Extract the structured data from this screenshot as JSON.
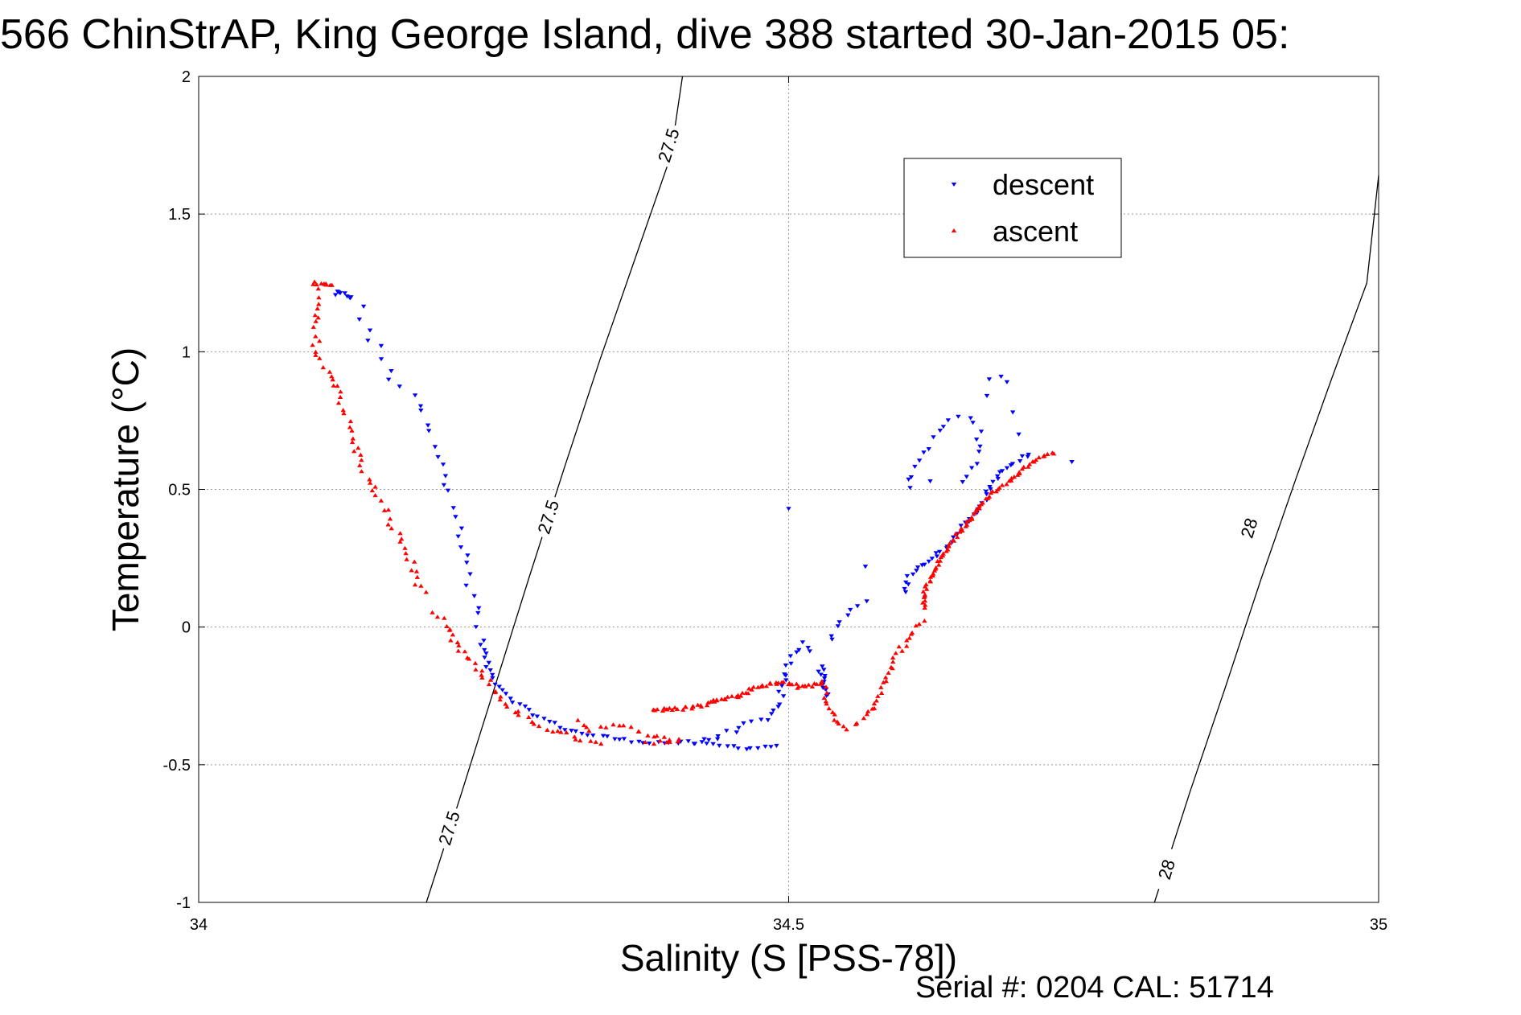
{
  "chart_data": {
    "type": "scatter",
    "title": "566 ChinStrAP, King George Island, dive 388 started 30-Jan-2015 05:",
    "xlabel": "Salinity (S [PSS-78])",
    "ylabel": "Temperature (°C)",
    "xlim": [
      34,
      35
    ],
    "ylim": [
      -1,
      2
    ],
    "xticks": [
      34,
      34.5,
      35
    ],
    "xtick_labels": [
      "34",
      "34.5",
      "35"
    ],
    "yticks": [
      -1,
      -0.5,
      0,
      0.5,
      1,
      1.5,
      2
    ],
    "ytick_labels": [
      "-1",
      "-0.5",
      "0",
      "0.5",
      "1",
      "1.5",
      "2"
    ],
    "grid": true,
    "legend_position": "top-right",
    "colors": {
      "descent": "#0000ff",
      "ascent": "#ff0000"
    },
    "footer": "Serial #: 0204  CAL: 51714",
    "isopycnals": [
      {
        "label": "27.5",
        "points": [
          [
            34.193,
            -1.0
          ],
          [
            34.223,
            -0.6
          ],
          [
            34.25,
            -0.23
          ],
          [
            34.28,
            0.18
          ],
          [
            34.31,
            0.58
          ],
          [
            34.34,
            0.97
          ],
          [
            34.37,
            1.34
          ],
          [
            34.4,
            1.71
          ],
          [
            34.41,
            2.0
          ]
        ],
        "labels_at": [
          [
            34.212,
            -0.73
          ],
          [
            34.296,
            0.4
          ],
          [
            34.398,
            1.75
          ]
        ]
      },
      {
        "label": "28",
        "points": [
          [
            34.81,
            -1.0
          ],
          [
            34.84,
            -0.6
          ],
          [
            34.87,
            -0.22
          ],
          [
            34.9,
            0.17
          ],
          [
            34.93,
            0.54
          ],
          [
            34.96,
            0.9
          ],
          [
            34.99,
            1.25
          ],
          [
            35.0,
            1.64
          ]
        ],
        "labels_at": [
          [
            34.82,
            -0.88
          ],
          [
            34.89,
            0.36
          ]
        ]
      }
    ],
    "series": [
      {
        "name": "descent",
        "marker": "down-triangle",
        "segments": [
          {
            "s": [
              [
                34.115,
                1.21
              ],
              [
                34.12,
                1.21
              ],
              [
                34.128,
                1.2
              ]
            ],
            "n": 8,
            "j": 0.006
          },
          {
            "s": [
              [
                34.132,
                1.19
              ],
              [
                34.14,
                1.12
              ],
              [
                34.146,
                1.04
              ],
              [
                34.155,
                0.98
              ],
              [
                34.165,
                0.9
              ],
              [
                34.175,
                0.86
              ],
              [
                34.188,
                0.8
              ],
              [
                34.19,
                0.75
              ],
              [
                34.198,
                0.67
              ],
              [
                34.205,
                0.6
              ],
              [
                34.21,
                0.5
              ],
              [
                34.22,
                0.42
              ],
              [
                34.223,
                0.3
              ],
              [
                34.228,
                0.2
              ],
              [
                34.235,
                0.1
              ],
              [
                34.238,
                0.0
              ]
            ],
            "n": 34,
            "j": 0.01
          },
          {
            "s": [
              [
                34.24,
                -0.05
              ],
              [
                34.245,
                -0.15
              ],
              [
                34.255,
                -0.22
              ],
              [
                34.27,
                -0.28
              ],
              [
                34.29,
                -0.33
              ],
              [
                34.31,
                -0.37
              ],
              [
                34.33,
                -0.39
              ],
              [
                34.36,
                -0.41
              ],
              [
                34.39,
                -0.42
              ],
              [
                34.42,
                -0.42
              ],
              [
                34.44,
                -0.43
              ],
              [
                34.47,
                -0.44
              ],
              [
                34.49,
                -0.43
              ]
            ],
            "n": 60,
            "j": 0.004
          },
          {
            "s": [
              [
                34.42,
                -0.42
              ],
              [
                34.44,
                -0.4
              ],
              [
                34.46,
                -0.36
              ],
              [
                34.48,
                -0.34
              ],
              [
                34.49,
                -0.3
              ],
              [
                34.495,
                -0.23
              ],
              [
                34.5,
                -0.13
              ],
              [
                34.51,
                -0.06
              ],
              [
                34.52,
                -0.08
              ]
            ],
            "n": 30,
            "j": 0.006
          },
          {
            "s": [
              [
                34.53,
                -0.14
              ],
              [
                34.53,
                -0.2
              ],
              [
                34.532,
                -0.25
              ],
              [
                34.528,
                -0.17
              ]
            ],
            "n": 14,
            "j": 0.006
          },
          {
            "s": [
              [
                34.535,
                -0.05
              ],
              [
                34.545,
                0.03
              ],
              [
                34.555,
                0.07
              ],
              [
                34.565,
                0.09
              ]
            ],
            "n": 8,
            "j": 0.006
          },
          {
            "s": [
              [
                34.6,
                0.13
              ],
              [
                34.6,
                0.17
              ],
              [
                34.61,
                0.22
              ],
              [
                34.625,
                0.26
              ],
              [
                34.635,
                0.3
              ],
              [
                34.645,
                0.35
              ],
              [
                34.655,
                0.4
              ],
              [
                34.665,
                0.45
              ],
              [
                34.67,
                0.5
              ],
              [
                34.68,
                0.56
              ],
              [
                34.695,
                0.61
              ],
              [
                34.705,
                0.63
              ]
            ],
            "n": 48,
            "j": 0.004
          },
          {
            "s": [
              [
                34.6,
                0.5
              ],
              [
                34.61,
                0.6
              ],
              [
                34.625,
                0.7
              ],
              [
                34.64,
                0.76
              ],
              [
                34.65,
                0.77
              ],
              [
                34.66,
                0.72
              ],
              [
                34.66,
                0.65
              ],
              [
                34.655,
                0.58
              ],
              [
                34.65,
                0.52
              ]
            ],
            "n": 22,
            "j": 0.007
          },
          {
            "s": [
              [
                34.668,
                0.84
              ],
              [
                34.67,
                0.9
              ],
              [
                34.68,
                0.91
              ],
              [
                34.685,
                0.89
              ],
              [
                34.69,
                0.78
              ],
              [
                34.695,
                0.7
              ],
              [
                34.74,
                0.6
              ],
              [
                34.5,
                0.43
              ],
              [
                34.565,
                0.22
              ],
              [
                34.62,
                0.53
              ]
            ],
            "n": 10,
            "j": 0.002
          }
        ]
      },
      {
        "name": "ascent",
        "marker": "up-triangle",
        "segments": [
          {
            "s": [
              [
                34.098,
                1.25
              ],
              [
                34.105,
                1.25
              ],
              [
                34.112,
                1.24
              ]
            ],
            "n": 10,
            "j": 0.004
          },
          {
            "s": [
              [
                34.1,
                1.22
              ],
              [
                34.1,
                1.16
              ],
              [
                34.097,
                1.1
              ],
              [
                34.1,
                1.03
              ],
              [
                34.1,
                0.98
              ],
              [
                34.112,
                0.92
              ],
              [
                34.118,
                0.88
              ],
              [
                34.122,
                0.8
              ],
              [
                34.13,
                0.7
              ],
              [
                34.135,
                0.62
              ],
              [
                34.142,
                0.55
              ],
              [
                34.15,
                0.48
              ],
              [
                34.16,
                0.4
              ],
              [
                34.17,
                0.33
              ],
              [
                34.178,
                0.25
              ],
              [
                34.185,
                0.18
              ],
              [
                34.19,
                0.12
              ]
            ],
            "n": 60,
            "j": 0.007
          },
          {
            "s": [
              [
                34.2,
                0.05
              ],
              [
                34.21,
                0.0
              ],
              [
                34.215,
                -0.05
              ],
              [
                34.225,
                -0.1
              ],
              [
                34.235,
                -0.15
              ],
              [
                34.245,
                -0.2
              ],
              [
                34.255,
                -0.25
              ],
              [
                34.265,
                -0.3
              ],
              [
                34.28,
                -0.34
              ],
              [
                34.3,
                -0.38
              ],
              [
                34.32,
                -0.4
              ],
              [
                34.34,
                -0.42
              ]
            ],
            "n": 45,
            "j": 0.006
          },
          {
            "s": [
              [
                34.32,
                -0.34
              ],
              [
                34.33,
                -0.37
              ],
              [
                34.35,
                -0.36
              ],
              [
                34.37,
                -0.37
              ],
              [
                34.39,
                -0.4
              ],
              [
                34.4,
                -0.41
              ],
              [
                34.41,
                -0.41
              ],
              [
                34.38,
                -0.42
              ]
            ],
            "n": 24,
            "j": 0.006
          },
          {
            "s": [
              [
                34.385,
                -0.3
              ],
              [
                34.4,
                -0.3
              ],
              [
                34.42,
                -0.29
              ],
              [
                34.43,
                -0.28
              ],
              [
                34.44,
                -0.26
              ],
              [
                34.46,
                -0.25
              ],
              [
                34.47,
                -0.22
              ],
              [
                34.48,
                -0.21
              ],
              [
                34.5,
                -0.2
              ],
              [
                34.51,
                -0.22
              ],
              [
                34.52,
                -0.21
              ],
              [
                34.53,
                -0.2
              ]
            ],
            "n": 70,
            "j": 0.004
          },
          {
            "s": [
              [
                34.53,
                -0.21
              ],
              [
                34.532,
                -0.24
              ],
              [
                34.535,
                -0.3
              ],
              [
                34.545,
                -0.36
              ],
              [
                34.55,
                -0.37
              ],
              [
                34.56,
                -0.34
              ],
              [
                34.57,
                -0.3
              ],
              [
                34.575,
                -0.25
              ],
              [
                34.58,
                -0.2
              ],
              [
                34.585,
                -0.16
              ],
              [
                34.59,
                -0.12
              ],
              [
                34.595,
                -0.08
              ],
              [
                34.6,
                -0.05
              ],
              [
                34.605,
                -0.02
              ],
              [
                34.615,
                0.02
              ]
            ],
            "n": 45,
            "j": 0.005
          },
          {
            "s": [
              [
                34.615,
                0.07
              ],
              [
                34.615,
                0.13
              ],
              [
                34.62,
                0.17
              ],
              [
                34.625,
                0.22
              ],
              [
                34.632,
                0.27
              ],
              [
                34.64,
                0.32
              ],
              [
                34.65,
                0.37
              ],
              [
                34.66,
                0.42
              ],
              [
                34.665,
                0.45
              ],
              [
                34.67,
                0.48
              ],
              [
                34.68,
                0.51
              ],
              [
                34.69,
                0.54
              ],
              [
                34.7,
                0.58
              ],
              [
                34.71,
                0.61
              ],
              [
                34.72,
                0.63
              ],
              [
                34.725,
                0.63
              ]
            ],
            "n": 80,
            "j": 0.003
          }
        ]
      }
    ]
  }
}
